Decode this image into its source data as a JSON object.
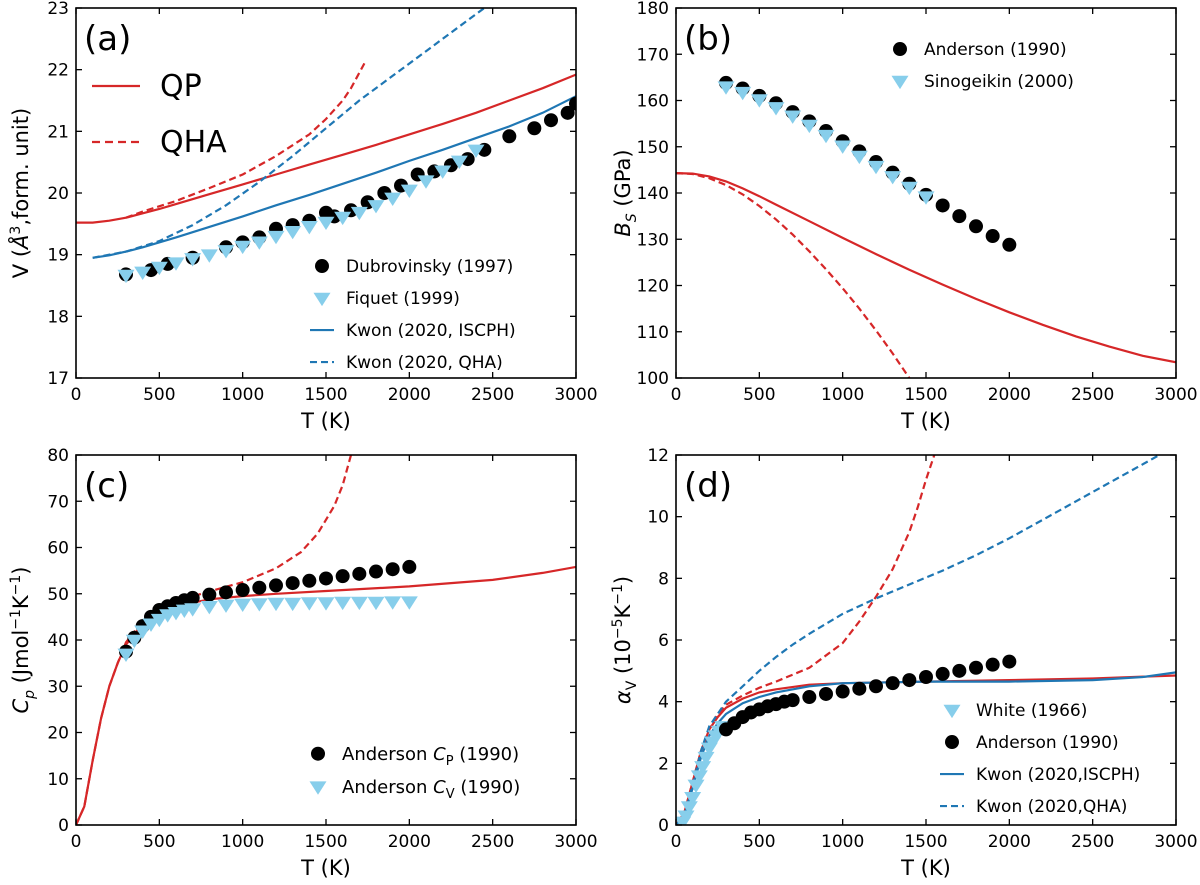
{
  "chart_data": [
    {
      "type": "line",
      "panel_label": "(a)",
      "xlabel": "T (K)",
      "ylabel": "V (Å³,form. unit)",
      "xlim": [
        0,
        3000
      ],
      "ylim": [
        17,
        23
      ],
      "xticks": [
        0,
        500,
        1000,
        1500,
        2000,
        2500,
        3000
      ],
      "yticks": [
        17,
        18,
        19,
        20,
        21,
        22,
        23
      ],
      "legend_top": {
        "position": "top-left",
        "entries": [
          "QP",
          "QHA"
        ]
      },
      "legend_bottom": {
        "position": "bottom-right",
        "entries": [
          "Dubrovinsky (1997)",
          "Fiquet (1999)",
          "Kwon (2020, ISCPH)",
          "Kwon (2020, QHA)"
        ]
      },
      "series": [
        {
          "name": "QP",
          "kind": "line",
          "color": "#d62728",
          "dash": false,
          "x": [
            0,
            100,
            200,
            300,
            400,
            500,
            600,
            800,
            1000,
            1200,
            1400,
            1600,
            1800,
            2000,
            2200,
            2400,
            2600,
            2800,
            3000
          ],
          "y": [
            19.52,
            19.52,
            19.55,
            19.6,
            19.67,
            19.74,
            19.82,
            19.98,
            20.14,
            20.3,
            20.46,
            20.62,
            20.78,
            20.95,
            21.12,
            21.3,
            21.5,
            21.7,
            21.92
          ]
        },
        {
          "name": "QHA",
          "kind": "line",
          "color": "#d62728",
          "dash": true,
          "x": [
            300,
            400,
            600,
            800,
            1000,
            1200,
            1400,
            1500,
            1600,
            1650,
            1700,
            1740
          ],
          "y": [
            19.6,
            19.7,
            19.87,
            20.08,
            20.3,
            20.6,
            20.95,
            21.2,
            21.5,
            21.7,
            21.95,
            22.15
          ]
        },
        {
          "name": "Kwon (2020, ISCPH)",
          "kind": "line",
          "color": "#1f77b4",
          "dash": false,
          "x": [
            100,
            200,
            300,
            400,
            600,
            800,
            1000,
            1200,
            1400,
            1600,
            1800,
            2000,
            2200,
            2400,
            2600,
            2800,
            3000
          ],
          "y": [
            18.95,
            18.99,
            19.05,
            19.12,
            19.28,
            19.45,
            19.62,
            19.8,
            19.97,
            20.15,
            20.33,
            20.52,
            20.7,
            20.89,
            21.08,
            21.3,
            21.57
          ]
        },
        {
          "name": "Kwon (2020, QHA)",
          "kind": "line",
          "color": "#1f77b4",
          "dash": true,
          "x": [
            100,
            300,
            500,
            700,
            900,
            1100,
            1300,
            1500,
            1700,
            1900,
            2100,
            2300,
            2450
          ],
          "y": [
            18.95,
            19.05,
            19.22,
            19.48,
            19.8,
            20.18,
            20.6,
            21.05,
            21.5,
            21.9,
            22.3,
            22.7,
            23.0
          ]
        },
        {
          "name": "Dubrovinsky (1997)",
          "kind": "marker",
          "marker": "circle",
          "color": "#000000",
          "x": [
            300,
            450,
            550,
            700,
            900,
            1000,
            1100,
            1200,
            1300,
            1400,
            1500,
            1550,
            1650,
            1750,
            1850,
            1950,
            2050,
            2150,
            2250,
            2350,
            2450,
            2600,
            2750,
            2850,
            2950,
            3000
          ],
          "y": [
            18.68,
            18.75,
            18.85,
            18.95,
            19.12,
            19.2,
            19.28,
            19.42,
            19.48,
            19.55,
            19.68,
            19.62,
            19.72,
            19.85,
            20.0,
            20.12,
            20.3,
            20.35,
            20.45,
            20.55,
            20.7,
            20.92,
            21.05,
            21.18,
            21.3,
            21.45
          ]
        },
        {
          "name": "Fiquet (1999)",
          "kind": "marker",
          "marker": "triangle",
          "color": "#87ceeb",
          "x": [
            300,
            400,
            500,
            600,
            700,
            800,
            900,
            1000,
            1100,
            1200,
            1300,
            1400,
            1500,
            1600,
            1700,
            1800,
            1900,
            2000,
            2100,
            2200,
            2300,
            2400
          ],
          "y": [
            18.67,
            18.72,
            18.8,
            18.87,
            18.94,
            19.0,
            19.07,
            19.14,
            19.21,
            19.3,
            19.38,
            19.46,
            19.53,
            19.61,
            19.69,
            19.8,
            19.92,
            20.05,
            20.2,
            20.36,
            20.52,
            20.7
          ]
        }
      ]
    },
    {
      "type": "line",
      "panel_label": "(b)",
      "xlabel": "T (K)",
      "ylabel": "B_S (GPa)",
      "xlim": [
        0,
        3000
      ],
      "ylim": [
        100,
        180
      ],
      "xticks": [
        0,
        500,
        1000,
        1500,
        2000,
        2500,
        3000
      ],
      "yticks": [
        100,
        110,
        120,
        130,
        140,
        150,
        160,
        170,
        180
      ],
      "legend": {
        "position": "top-right",
        "entries": [
          "Anderson (1990)",
          "Sinogeikin (2000)"
        ]
      },
      "series": [
        {
          "name": "QP",
          "kind": "line",
          "color": "#d62728",
          "dash": false,
          "x": [
            0,
            100,
            200,
            300,
            400,
            500,
            600,
            800,
            1000,
            1200,
            1400,
            1600,
            1800,
            2000,
            2200,
            2400,
            2600,
            2800,
            3000
          ],
          "y": [
            144.3,
            144.2,
            143.6,
            142.5,
            141.0,
            139.3,
            137.5,
            133.9,
            130.3,
            126.8,
            123.4,
            120.2,
            117.1,
            114.2,
            111.5,
            109.0,
            106.8,
            104.8,
            103.4
          ]
        },
        {
          "name": "QHA",
          "kind": "line",
          "color": "#d62728",
          "dash": true,
          "x": [
            0,
            100,
            200,
            300,
            400,
            500,
            600,
            700,
            800,
            900,
            1000,
            1100,
            1200,
            1300,
            1400
          ],
          "y": [
            144.3,
            144.1,
            143.2,
            141.7,
            139.7,
            137.2,
            134.3,
            131.0,
            127.4,
            123.5,
            119.4,
            115.0,
            110.3,
            105.3,
            100.0
          ]
        },
        {
          "name": "Anderson (1990)",
          "kind": "marker",
          "marker": "circle",
          "color": "#000000",
          "x": [
            300,
            400,
            500,
            600,
            700,
            800,
            900,
            1000,
            1100,
            1200,
            1300,
            1400,
            1500,
            1600,
            1700,
            1800,
            1900,
            2000
          ],
          "y": [
            163.8,
            162.6,
            161.0,
            159.4,
            157.5,
            155.5,
            153.4,
            151.2,
            149.0,
            146.7,
            144.4,
            142.0,
            139.6,
            137.3,
            135.0,
            132.8,
            130.7,
            128.8
          ]
        },
        {
          "name": "Sinogeikin (2000)",
          "kind": "marker",
          "marker": "triangle",
          "color": "#87ceeb",
          "x": [
            300,
            400,
            500,
            600,
            700,
            800,
            900,
            1000,
            1100,
            1200,
            1300,
            1400,
            1500
          ],
          "y": [
            163.0,
            161.8,
            160.2,
            158.5,
            156.7,
            154.7,
            152.5,
            150.2,
            148.0,
            145.8,
            143.6,
            141.3,
            139.2
          ]
        }
      ]
    },
    {
      "type": "line",
      "panel_label": "(c)",
      "xlabel": "T (K)",
      "ylabel": "C_p (Jmol⁻¹K⁻¹)",
      "xlim": [
        0,
        3000
      ],
      "ylim": [
        0,
        80
      ],
      "xticks": [
        0,
        500,
        1000,
        1500,
        2000,
        2500,
        3000
      ],
      "yticks": [
        0,
        10,
        20,
        30,
        40,
        50,
        60,
        70,
        80
      ],
      "legend": {
        "position": "bottom-right",
        "entries": [
          "Anderson C_P (1990)",
          "Anderson C_V (1990)"
        ]
      },
      "series": [
        {
          "name": "QP",
          "kind": "line",
          "color": "#d62728",
          "dash": false,
          "x": [
            0,
            50,
            100,
            150,
            200,
            250,
            300,
            400,
            500,
            600,
            800,
            1000,
            1200,
            1500,
            2000,
            2500,
            2800,
            3000
          ],
          "y": [
            0,
            4,
            14,
            23,
            30,
            35,
            39,
            43.5,
            46,
            47.3,
            48.8,
            49.5,
            50.0,
            50.6,
            51.6,
            53.0,
            54.5,
            55.8
          ]
        },
        {
          "name": "QHA",
          "kind": "line",
          "color": "#d62728",
          "dash": true,
          "x": [
            0,
            50,
            100,
            150,
            200,
            250,
            300,
            400,
            500,
            600,
            800,
            1000,
            1200,
            1350,
            1450,
            1550,
            1600,
            1650
          ],
          "y": [
            0,
            4,
            14,
            23,
            30,
            35,
            39.5,
            44,
            46.8,
            48.3,
            50.5,
            52.5,
            55.5,
            59,
            63,
            69,
            73.5,
            80
          ]
        },
        {
          "name": "Anderson C_P (1990)",
          "kind": "marker",
          "marker": "circle",
          "color": "#000000",
          "x": [
            300,
            350,
            400,
            450,
            500,
            550,
            600,
            650,
            700,
            800,
            900,
            1000,
            1100,
            1200,
            1300,
            1400,
            1500,
            1600,
            1700,
            1800,
            1900,
            2000
          ],
          "y": [
            37.5,
            40.5,
            43.0,
            45.0,
            46.5,
            47.3,
            48.0,
            48.6,
            49.1,
            49.8,
            50.3,
            50.8,
            51.3,
            51.8,
            52.3,
            52.8,
            53.3,
            53.8,
            54.3,
            54.8,
            55.3,
            55.8
          ]
        },
        {
          "name": "Anderson C_V (1990)",
          "kind": "marker",
          "marker": "triangle",
          "color": "#87ceeb",
          "x": [
            300,
            350,
            400,
            450,
            500,
            550,
            600,
            650,
            700,
            800,
            900,
            1000,
            1100,
            1200,
            1300,
            1400,
            1500,
            1600,
            1700,
            1800,
            1900,
            2000
          ],
          "y": [
            37.0,
            40.0,
            42.0,
            43.5,
            44.5,
            45.5,
            46.0,
            46.5,
            46.8,
            47.3,
            47.6,
            47.8,
            47.9,
            48.0,
            48.0,
            48.1,
            48.1,
            48.2,
            48.2,
            48.2,
            48.3,
            48.3
          ]
        }
      ]
    },
    {
      "type": "line",
      "panel_label": "(d)",
      "xlabel": "T (K)",
      "ylabel": "α_V (10⁻⁵K⁻¹)",
      "xlim": [
        0,
        3000
      ],
      "ylim": [
        0,
        12
      ],
      "xticks": [
        0,
        500,
        1000,
        1500,
        2000,
        2500,
        3000
      ],
      "yticks": [
        0,
        2,
        4,
        6,
        8,
        10,
        12
      ],
      "legend": {
        "position": "bottom-right",
        "entries": [
          "White (1966)",
          "Anderson (1990)",
          "Kwon (2020,ISCPH)",
          "Kwon (2020,QHA)"
        ]
      },
      "series": [
        {
          "name": "QP",
          "kind": "line",
          "color": "#d62728",
          "dash": false,
          "x": [
            0,
            50,
            100,
            150,
            200,
            250,
            300,
            400,
            500,
            600,
            800,
            1000,
            1500,
            2000,
            2500,
            3000
          ],
          "y": [
            0,
            0.4,
            1.4,
            2.4,
            3.1,
            3.5,
            3.8,
            4.1,
            4.3,
            4.4,
            4.55,
            4.6,
            4.65,
            4.7,
            4.75,
            4.85
          ]
        },
        {
          "name": "QHA",
          "kind": "line",
          "color": "#d62728",
          "dash": true,
          "x": [
            0,
            50,
            100,
            150,
            200,
            250,
            300,
            400,
            500,
            600,
            800,
            1000,
            1100,
            1200,
            1300,
            1400,
            1450,
            1500,
            1550
          ],
          "y": [
            0,
            0.4,
            1.4,
            2.4,
            3.1,
            3.6,
            3.9,
            4.2,
            4.45,
            4.65,
            5.1,
            5.9,
            6.6,
            7.4,
            8.3,
            9.5,
            10.3,
            11.2,
            12.0
          ]
        },
        {
          "name": "Kwon (2020,ISCPH)",
          "kind": "line",
          "color": "#1f77b4",
          "dash": false,
          "x": [
            0,
            50,
            100,
            150,
            200,
            250,
            300,
            400,
            500,
            600,
            800,
            1000,
            1500,
            2000,
            2500,
            2800,
            3000
          ],
          "y": [
            0,
            0.3,
            1.2,
            2.2,
            2.9,
            3.3,
            3.6,
            3.95,
            4.15,
            4.3,
            4.5,
            4.6,
            4.65,
            4.65,
            4.7,
            4.8,
            4.95
          ]
        },
        {
          "name": "Kwon (2020,QHA)",
          "kind": "line",
          "color": "#1f77b4",
          "dash": true,
          "x": [
            0,
            50,
            100,
            150,
            200,
            300,
            400,
            500,
            600,
            700,
            800,
            1000,
            1200,
            1400,
            1600,
            1800,
            2000,
            2200,
            2400,
            2600,
            2800,
            2900
          ],
          "y": [
            0,
            0.3,
            1.3,
            2.4,
            3.2,
            4.0,
            4.5,
            5.0,
            5.45,
            5.85,
            6.2,
            6.85,
            7.35,
            7.8,
            8.25,
            8.75,
            9.3,
            9.9,
            10.5,
            11.1,
            11.7,
            12.0
          ]
        },
        {
          "name": "White (1966)",
          "kind": "marker",
          "marker": "triangle",
          "color": "#87ceeb",
          "x": [
            40,
            60,
            80,
            100,
            120,
            140,
            160,
            180,
            200,
            220,
            240,
            260,
            280
          ],
          "y": [
            0.1,
            0.3,
            0.6,
            0.9,
            1.3,
            1.6,
            1.9,
            2.2,
            2.5,
            2.7,
            2.9,
            3.05,
            3.2
          ]
        },
        {
          "name": "Anderson (1990)",
          "kind": "marker",
          "marker": "circle",
          "color": "#000000",
          "x": [
            300,
            350,
            400,
            450,
            500,
            550,
            600,
            650,
            700,
            800,
            900,
            1000,
            1100,
            1200,
            1300,
            1400,
            1500,
            1600,
            1700,
            1800,
            1900,
            2000
          ],
          "y": [
            3.1,
            3.3,
            3.5,
            3.65,
            3.75,
            3.85,
            3.92,
            4.0,
            4.05,
            4.15,
            4.25,
            4.33,
            4.42,
            4.5,
            4.6,
            4.7,
            4.8,
            4.9,
            5.0,
            5.1,
            5.2,
            5.3
          ]
        }
      ]
    }
  ]
}
